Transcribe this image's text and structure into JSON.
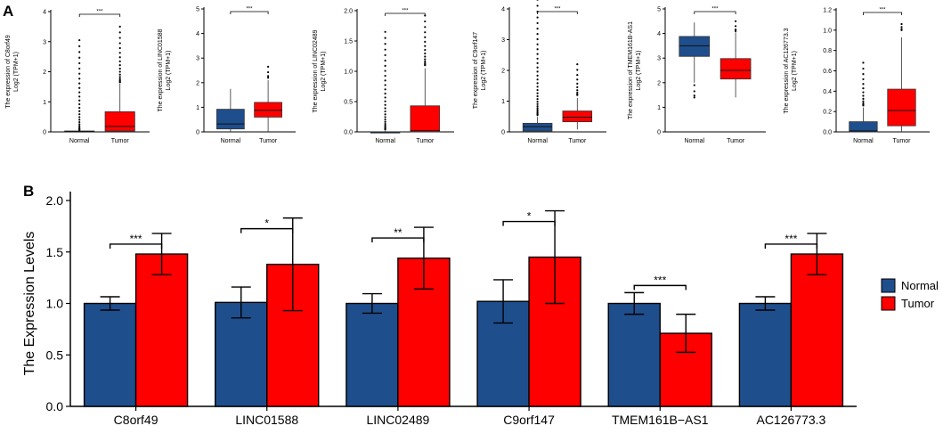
{
  "panel_labels": {
    "a": "A",
    "b": "B"
  },
  "colors": {
    "normal": "#1f4e8c",
    "tumor": "#ff0000",
    "axis": "#000000",
    "outlier": "#000000"
  },
  "chart_data": [
    {
      "type": "box",
      "panel": "A",
      "gene": "C8orf49",
      "ylabel_line1": "The expression of C8orf49",
      "ylabel_line2": "Log2 (TPM+1)",
      "ylim": [
        0,
        4
      ],
      "yticks": [
        0,
        1,
        2,
        3,
        4
      ],
      "categories": [
        "Normal",
        "Tumor"
      ],
      "significance": "***",
      "boxes": [
        {
          "name": "Normal",
          "min": 0,
          "q1": 0,
          "median": 0.01,
          "q3": 0.03,
          "max": 0.05,
          "outliers_from": 0.06,
          "outliers_to": 3.05
        },
        {
          "name": "Tumor",
          "min": 0,
          "q1": 0.03,
          "median": 0.18,
          "q3": 0.67,
          "max": 1.6,
          "outliers_from": 1.65,
          "outliers_to": 3.5
        }
      ]
    },
    {
      "type": "box",
      "panel": "A",
      "gene": "LINC01588",
      "ylabel_line1": "The expression of LINC01588",
      "ylabel_line2": "Log2 (TPM+1)",
      "ylim": [
        0,
        5
      ],
      "yticks": [
        0,
        1,
        2,
        3,
        4,
        5
      ],
      "categories": [
        "Normal",
        "Tumor"
      ],
      "significance": "***",
      "boxes": [
        {
          "name": "Normal",
          "min": 0,
          "q1": 0.12,
          "median": 0.32,
          "q3": 0.92,
          "max": 1.75,
          "outliers_from": null,
          "outliers_to": null
        },
        {
          "name": "Tumor",
          "min": 0,
          "q1": 0.6,
          "median": 0.88,
          "q3": 1.2,
          "max": 2.1,
          "outliers_from": 2.2,
          "outliers_to": 2.65
        }
      ]
    },
    {
      "type": "box",
      "panel": "A",
      "gene": "LINC02489",
      "ylabel_line1": "The expression of LINC02489",
      "ylabel_line2": "Log2 (TPM+1)",
      "ylim": [
        0,
        2
      ],
      "yticks": [
        0.0,
        0.5,
        1.0,
        1.5,
        2.0
      ],
      "categories": [
        "Normal",
        "Tumor"
      ],
      "significance": "***",
      "boxes": [
        {
          "name": "Normal",
          "min": 0,
          "q1": 0,
          "median": 0,
          "q3": 0,
          "max": 0.02,
          "outliers_from": 0.04,
          "outliers_to": 1.65
        },
        {
          "name": "Tumor",
          "min": 0,
          "q1": 0,
          "median": 0.02,
          "q3": 0.43,
          "max": 1.05,
          "outliers_from": 1.1,
          "outliers_to": 1.92
        }
      ]
    },
    {
      "type": "box",
      "panel": "A",
      "gene": "C9orf147",
      "ylabel_line1": "The expression of C9orf147",
      "ylabel_line2": "Log2 (TPM+1)",
      "ylim": [
        0,
        4
      ],
      "yticks": [
        0,
        1,
        2,
        3,
        4
      ],
      "categories": [
        "Normal",
        "Tumor"
      ],
      "significance": "***",
      "boxes": [
        {
          "name": "Normal",
          "min": 0,
          "q1": 0.03,
          "median": 0.17,
          "q3": 0.28,
          "max": 0.5,
          "outliers_from": 0.55,
          "outliers_to": 4.3
        },
        {
          "name": "Tumor",
          "min": 0.08,
          "q1": 0.33,
          "median": 0.48,
          "q3": 0.68,
          "max": 1.1,
          "outliers_from": 1.2,
          "outliers_to": 2.2
        }
      ]
    },
    {
      "type": "box",
      "panel": "A",
      "gene": "TMEM161B-AS1",
      "ylabel_line1": "The expression of TMEM161B-AS1",
      "ylabel_line2": "Log2 (TPM+1)",
      "ylim": [
        0,
        5
      ],
      "yticks": [
        0,
        1,
        2,
        3,
        4,
        5
      ],
      "categories": [
        "Normal",
        "Tumor"
      ],
      "significance": "***",
      "boxes": [
        {
          "name": "Normal",
          "min": 2.0,
          "q1": 3.07,
          "median": 3.5,
          "q3": 3.88,
          "max": 4.45,
          "outliers_from": 1.4,
          "outliers_to": 1.9
        },
        {
          "name": "Tumor",
          "min": 1.4,
          "q1": 2.15,
          "median": 2.5,
          "q3": 2.98,
          "max": 4.05,
          "outliers_from": 4.1,
          "outliers_to": 4.5
        }
      ]
    },
    {
      "type": "box",
      "panel": "A",
      "gene": "AC126773.3",
      "ylabel_line1": "The expression of AC126773.3",
      "ylabel_line2": "Log2 (TPM+1)",
      "ylim": [
        0,
        1.2
      ],
      "yticks": [
        0.0,
        0.2,
        0.4,
        0.6,
        0.8,
        1.0,
        1.2
      ],
      "categories": [
        "Normal",
        "Tumor"
      ],
      "significance": "***",
      "boxes": [
        {
          "name": "Normal",
          "min": 0,
          "q1": 0,
          "median": 0.01,
          "q3": 0.1,
          "max": 0.24,
          "outliers_from": 0.26,
          "outliers_to": 0.68
        },
        {
          "name": "Tumor",
          "min": 0,
          "q1": 0.06,
          "median": 0.21,
          "q3": 0.42,
          "max": 0.93,
          "outliers_from": 1.0,
          "outliers_to": 1.06
        }
      ]
    },
    {
      "type": "bar",
      "panel": "B",
      "ylabel": "The Expression Levels",
      "ylim": [
        0,
        2.0
      ],
      "yticks": [
        "0.0",
        "0.5",
        "1.0",
        "1.5",
        "2.0"
      ],
      "categories": [
        "C8orf49",
        "LINC01588",
        "LINC02489",
        "C9orf147",
        "TMEM161B−AS1",
        "AC126773.3"
      ],
      "series": [
        {
          "name": "Normal",
          "values": [
            1.0,
            1.01,
            1.0,
            1.02,
            1.0,
            1.0
          ],
          "err": [
            0.065,
            0.15,
            0.095,
            0.21,
            0.105,
            0.065
          ]
        },
        {
          "name": "Tumor",
          "values": [
            1.48,
            1.38,
            1.44,
            1.45,
            0.71,
            1.48
          ],
          "err": [
            0.2,
            0.45,
            0.3,
            0.45,
            0.185,
            0.2
          ]
        }
      ],
      "significance": [
        "***",
        "*",
        "**",
        "*",
        "***",
        "***"
      ],
      "legend": [
        "Normal",
        "Tumor"
      ]
    }
  ]
}
